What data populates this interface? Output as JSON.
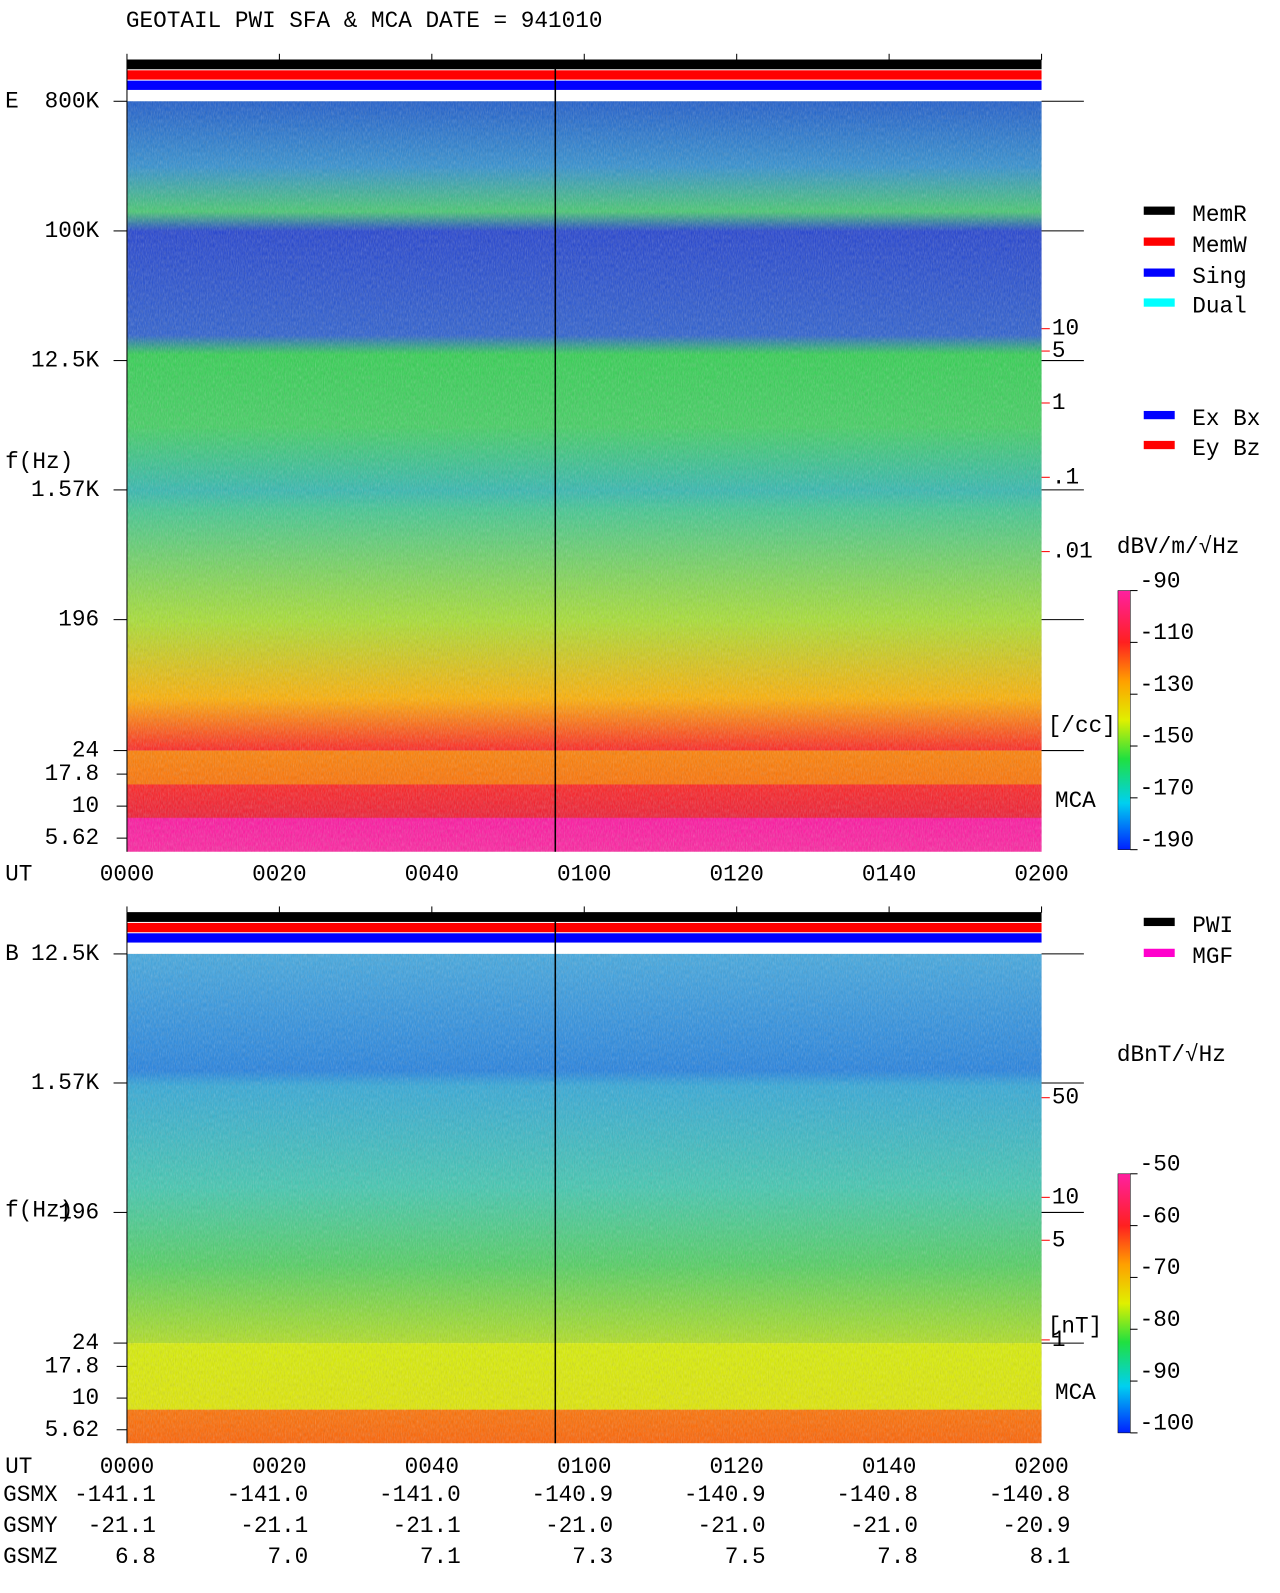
{
  "chart_data": [
    {
      "type": "spectrogram",
      "title": "GEOTAIL  PWI SFA & MCA   DATE = 941010",
      "panel_label": "E",
      "y_label": "f(Hz)",
      "x_label": "UT",
      "log_y": true,
      "ylim": [
        24,
        800000
      ],
      "yticks": [
        {
          "value": 800000,
          "label": "800K"
        },
        {
          "value": 100000,
          "label": "100K"
        },
        {
          "value": 12500,
          "label": "12.5K"
        },
        {
          "value": 1570,
          "label": "1.57K"
        },
        196,
        24
      ],
      "mca_label": "MCA",
      "mca_lim": [
        4.4,
        27.2
      ],
      "mca_ticks": [
        17.8,
        10,
        5.62
      ],
      "xlim": [
        0,
        120
      ],
      "xticks": [
        {
          "value": 0,
          "label": "0000"
        },
        {
          "value": 20,
          "label": "0020"
        },
        {
          "value": 40,
          "label": "0040"
        },
        {
          "value": 60,
          "label": "0100"
        },
        {
          "value": 80,
          "label": "0120"
        },
        {
          "value": 100,
          "label": "0140"
        },
        {
          "value": 120,
          "label": "0200"
        }
      ],
      "marker_time": 56.2,
      "y2lim": [
        2.1e-05,
        11500
      ],
      "y2ticks": [
        10,
        5,
        1,
        {
          "value": 0.1,
          "label": ".1"
        },
        {
          "value": 0.01,
          "label": ".01"
        }
      ],
      "y2_unit": "[/cc]",
      "y2_color": "#ff0000",
      "colorbar": {
        "label": "dBV/m/√Hz",
        "lim": [
          -190,
          -90
        ],
        "ticks": [
          -90,
          -110,
          -130,
          -150,
          -170,
          -190
        ]
      },
      "legends": [
        [
          {
            "name": "MemR",
            "color": "#000000"
          },
          {
            "name": "MemW",
            "color": "#ff0000"
          },
          {
            "name": "Sing",
            "color": "#0000ff"
          },
          {
            "name": "Dual",
            "color": "#00ffff"
          }
        ],
        [
          {
            "name": "Ex Bx",
            "color": "#0000ff"
          },
          {
            "name": "Ey Bz",
            "color": "#ff0000"
          }
        ]
      ]
    },
    {
      "type": "spectrogram",
      "panel_label": "B",
      "y_label": "f(Hz)",
      "x_label": "UT",
      "log_y": true,
      "ylim": [
        24,
        12500
      ],
      "yticks": [
        {
          "value": 12500,
          "label": "12.5K"
        },
        {
          "value": 1570,
          "label": "1.57K"
        },
        196,
        24
      ],
      "mca_label": "MCA",
      "mca_lim": [
        4.4,
        27.2
      ],
      "mca_ticks": [
        17.8,
        10,
        5.62
      ],
      "xlim": [
        0,
        120
      ],
      "xticks": [
        {
          "value": 0,
          "label": "0000"
        },
        {
          "value": 20,
          "label": "0020"
        },
        {
          "value": 40,
          "label": "0040"
        },
        {
          "value": 60,
          "label": "0100"
        },
        {
          "value": 80,
          "label": "0120"
        },
        {
          "value": 100,
          "label": "0140"
        },
        {
          "value": 120,
          "label": "0200"
        }
      ],
      "marker_time": 56.2,
      "y2lim": [
        0.95,
        510
      ],
      "y2ticks": [
        50,
        10,
        5,
        1
      ],
      "y2_unit": "[nT]",
      "y2_color": "#ff0000",
      "colorbar": {
        "label": "dBnT/√Hz",
        "lim": [
          -100,
          -50
        ],
        "ticks": [
          -50,
          -60,
          -70,
          -80,
          -90,
          -100
        ]
      },
      "legends": [
        [
          {
            "name": "PWI",
            "color": "#000000"
          },
          {
            "name": "MGF",
            "color": "#ff00cc"
          }
        ]
      ]
    }
  ],
  "orbit": {
    "row_labels": [
      "GSMX",
      "GSMY",
      "GSMZ"
    ],
    "rows": [
      [
        "-141.1",
        "-141.0",
        "-141.0",
        "-140.9",
        "-140.9",
        "-140.8",
        "-140.8"
      ],
      [
        "-21.1",
        "-21.1",
        "-21.1",
        "-21.0",
        "-21.0",
        "-21.0",
        "-20.9"
      ],
      [
        "6.8",
        "7.0",
        "7.1",
        "7.3",
        "7.5",
        "7.8",
        "8.1"
      ]
    ]
  }
}
